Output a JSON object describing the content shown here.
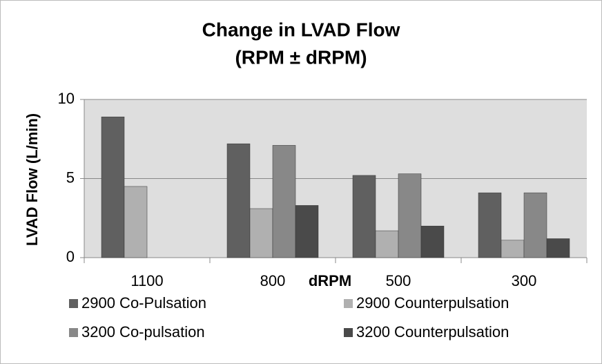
{
  "chart_data": {
    "type": "bar",
    "title": "Change in LVAD Flow",
    "subtitle": "(RPM ± dRPM)",
    "x_label": "dRPM",
    "y_label": "LVAD Flow (L/min)",
    "categories": [
      "1100",
      "800",
      "500",
      "300"
    ],
    "series": [
      {
        "name": "2900 Co-Pulsation",
        "color": "#606060",
        "values": [
          8.9,
          7.2,
          5.2,
          4.1
        ]
      },
      {
        "name": "2900 Counterpulsation",
        "color": "#b0b0b0",
        "values": [
          4.5,
          3.1,
          1.7,
          1.1
        ]
      },
      {
        "name": "3200 Co-pulsation",
        "color": "#888888",
        "values": [
          null,
          7.1,
          5.3,
          4.1
        ]
      },
      {
        "name": "3200 Counterpulsation",
        "color": "#4a4a4a",
        "values": [
          null,
          3.3,
          2.0,
          1.2
        ]
      }
    ],
    "ylim": [
      0,
      10
    ],
    "yticks": [
      0,
      5,
      10
    ],
    "grid": true
  }
}
